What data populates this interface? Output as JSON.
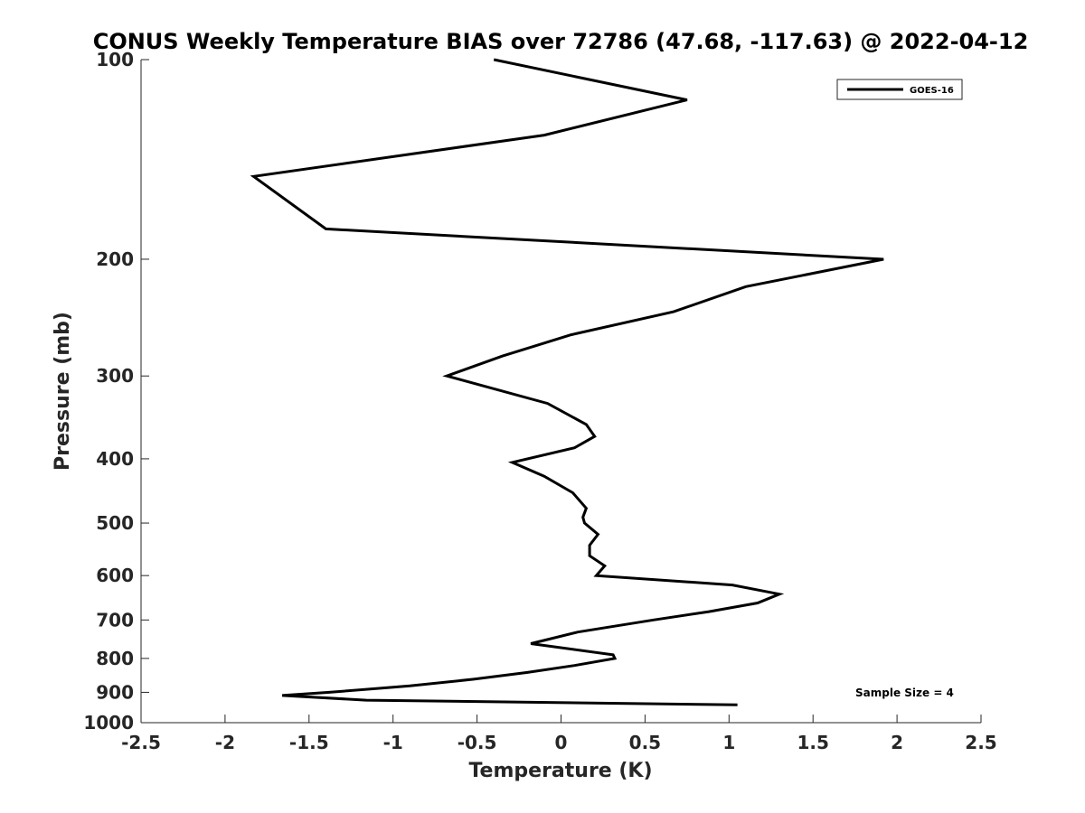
{
  "chart_data": {
    "type": "line",
    "title": "CONUS Weekly Temperature BIAS over 72786 (47.68, -117.63) @ 2022-04-12",
    "xlabel": "Temperature (K)",
    "ylabel": "Pressure (mb)",
    "xlim": [
      -2.5,
      2.5
    ],
    "ylim": [
      1000,
      100
    ],
    "y_scale": "log",
    "y_reversed": true,
    "x_ticks": [
      -2.5,
      -2,
      -1.5,
      -1,
      -0.5,
      0,
      0.5,
      1,
      1.5,
      2,
      2.5
    ],
    "x_tick_labels": [
      "-2.5",
      "-2",
      "-1.5",
      "-1",
      "-0.5",
      "0",
      "0.5",
      "1",
      "1.5",
      "2",
      "2.5"
    ],
    "y_ticks": [
      100,
      200,
      300,
      400,
      500,
      600,
      700,
      800,
      900,
      1000
    ],
    "y_tick_labels": [
      "100",
      "200",
      "300",
      "400",
      "500",
      "600",
      "700",
      "800",
      "900",
      "1000"
    ],
    "grid": false,
    "legend_position": "top-right",
    "series": [
      {
        "name": "GOES-16",
        "color": "#000000",
        "x": [
          -0.4,
          0.75,
          -0.1,
          -1.83,
          -1.4,
          1.92,
          1.1,
          0.67,
          0.06,
          -0.35,
          -0.68,
          -0.08,
          0.15,
          0.2,
          0.08,
          -0.29,
          -0.1,
          0.07,
          0.15,
          0.13,
          0.14,
          0.22,
          0.17,
          0.17,
          0.26,
          0.21,
          1.02,
          1.3,
          1.17,
          0.88,
          0.55,
          0.1,
          -0.18,
          0.31,
          0.32,
          0.08,
          -0.2,
          -0.52,
          -0.9,
          -1.38,
          -1.66,
          -1.16,
          1.05
        ],
        "y": [
          100,
          115,
          130,
          150,
          180,
          200,
          220,
          240,
          260,
          280,
          300,
          330,
          355,
          370,
          385,
          405,
          425,
          450,
          475,
          490,
          500,
          520,
          540,
          560,
          580,
          600,
          620,
          640,
          660,
          680,
          700,
          730,
          760,
          790,
          800,
          820,
          840,
          860,
          880,
          900,
          910,
          925,
          940
        ]
      }
    ],
    "annotations": [
      {
        "text": "Sample Size = 4",
        "position": "bottom-right"
      }
    ]
  }
}
